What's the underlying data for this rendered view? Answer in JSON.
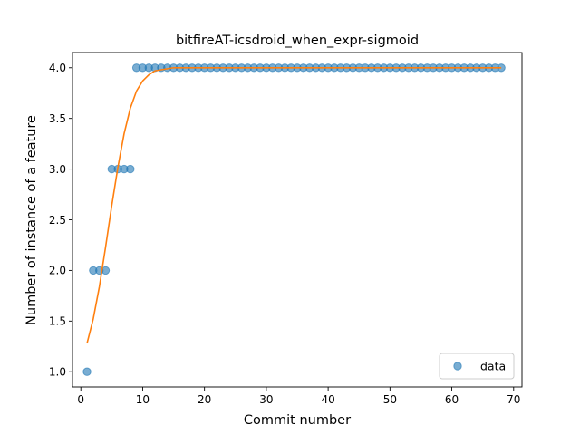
{
  "chart_data": {
    "type": "scatter",
    "title": "bitfireAT-icsdroid_when_expr-sigmoid",
    "xlabel": "Commit number",
    "ylabel": "Number of instance of a feature",
    "xlim": [
      -1.35,
      71.35
    ],
    "ylim": [
      0.85,
      4.15
    ],
    "xticks": [
      0,
      10,
      20,
      30,
      40,
      50,
      60,
      70
    ],
    "yticks": [
      1.0,
      1.5,
      2.0,
      2.5,
      3.0,
      3.5,
      4.0
    ],
    "xtick_labels": [
      "0",
      "10",
      "20",
      "30",
      "40",
      "50",
      "60",
      "70"
    ],
    "ytick_labels": [
      "1.0",
      "1.5",
      "2.0",
      "2.5",
      "3.0",
      "3.5",
      "4.0"
    ],
    "grid": false,
    "legend_position": "lower right",
    "series": [
      {
        "name": "data",
        "kind": "points",
        "color": "#1f77b4",
        "points": [
          [
            1,
            1
          ],
          [
            2,
            2
          ],
          [
            3,
            2
          ],
          [
            4,
            2
          ],
          [
            5,
            3
          ],
          [
            6,
            3
          ],
          [
            7,
            3
          ],
          [
            8,
            3
          ],
          [
            9,
            4
          ],
          [
            10,
            4
          ],
          [
            11,
            4
          ],
          [
            12,
            4
          ],
          [
            13,
            4
          ],
          [
            14,
            4
          ],
          [
            15,
            4
          ],
          [
            16,
            4
          ],
          [
            17,
            4
          ],
          [
            18,
            4
          ],
          [
            19,
            4
          ],
          [
            20,
            4
          ],
          [
            21,
            4
          ],
          [
            22,
            4
          ],
          [
            23,
            4
          ],
          [
            24,
            4
          ],
          [
            25,
            4
          ],
          [
            26,
            4
          ],
          [
            27,
            4
          ],
          [
            28,
            4
          ],
          [
            29,
            4
          ],
          [
            30,
            4
          ],
          [
            31,
            4
          ],
          [
            32,
            4
          ],
          [
            33,
            4
          ],
          [
            34,
            4
          ],
          [
            35,
            4
          ],
          [
            36,
            4
          ],
          [
            37,
            4
          ],
          [
            38,
            4
          ],
          [
            39,
            4
          ],
          [
            40,
            4
          ],
          [
            41,
            4
          ],
          [
            42,
            4
          ],
          [
            43,
            4
          ],
          [
            44,
            4
          ],
          [
            45,
            4
          ],
          [
            46,
            4
          ],
          [
            47,
            4
          ],
          [
            48,
            4
          ],
          [
            49,
            4
          ],
          [
            50,
            4
          ],
          [
            51,
            4
          ],
          [
            52,
            4
          ],
          [
            53,
            4
          ],
          [
            54,
            4
          ],
          [
            55,
            4
          ],
          [
            56,
            4
          ],
          [
            57,
            4
          ],
          [
            58,
            4
          ],
          [
            59,
            4
          ],
          [
            60,
            4
          ],
          [
            61,
            4
          ],
          [
            62,
            4
          ],
          [
            63,
            4
          ],
          [
            64,
            4
          ],
          [
            65,
            4
          ],
          [
            66,
            4
          ],
          [
            67,
            4
          ],
          [
            68,
            4
          ]
        ]
      },
      {
        "kind": "line",
        "color": "#ff7f0e",
        "points": [
          [
            1,
            1.28
          ],
          [
            2,
            1.52
          ],
          [
            3,
            1.84
          ],
          [
            4,
            2.23
          ],
          [
            5,
            2.64
          ],
          [
            6,
            3.02
          ],
          [
            7,
            3.35
          ],
          [
            8,
            3.6
          ],
          [
            9,
            3.77
          ],
          [
            10,
            3.87
          ],
          [
            11,
            3.93
          ],
          [
            12,
            3.97
          ],
          [
            13,
            3.98
          ],
          [
            14,
            3.99
          ],
          [
            15,
            4.0
          ],
          [
            20,
            4.0
          ],
          [
            30,
            4.0
          ],
          [
            40,
            4.0
          ],
          [
            50,
            4.0
          ],
          [
            60,
            4.0
          ],
          [
            68,
            4.0
          ]
        ]
      }
    ]
  }
}
